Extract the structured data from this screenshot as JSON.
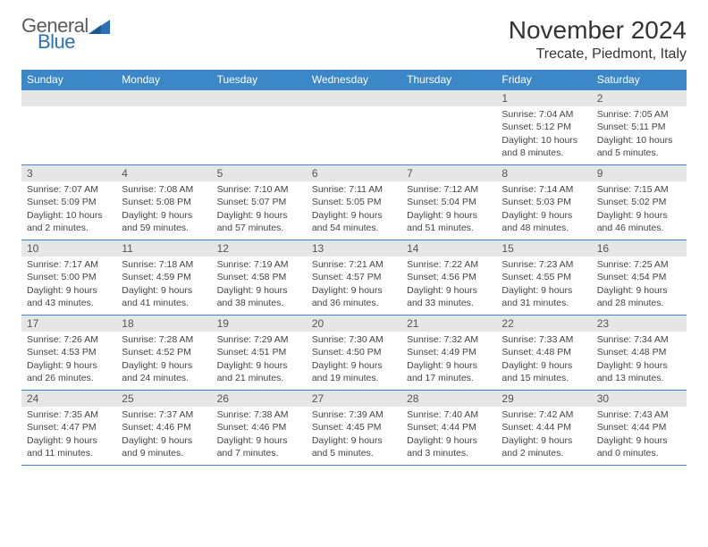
{
  "logo": {
    "top": "General",
    "bottom": "Blue"
  },
  "title": "November 2024",
  "location": "Trecate, Piedmont, Italy",
  "colors": {
    "header_bg": "#3b87c8",
    "header_text": "#ffffff",
    "daynum_bg": "#e6e6e6",
    "border": "#3b87c8",
    "logo_gray": "#5c5c5c",
    "logo_blue": "#2a72b5"
  },
  "weekdays": [
    "Sunday",
    "Monday",
    "Tuesday",
    "Wednesday",
    "Thursday",
    "Friday",
    "Saturday"
  ],
  "weeks": [
    [
      {
        "n": "",
        "sr": "",
        "ss": "",
        "dl": ""
      },
      {
        "n": "",
        "sr": "",
        "ss": "",
        "dl": ""
      },
      {
        "n": "",
        "sr": "",
        "ss": "",
        "dl": ""
      },
      {
        "n": "",
        "sr": "",
        "ss": "",
        "dl": ""
      },
      {
        "n": "",
        "sr": "",
        "ss": "",
        "dl": ""
      },
      {
        "n": "1",
        "sr": "Sunrise: 7:04 AM",
        "ss": "Sunset: 5:12 PM",
        "dl": "Daylight: 10 hours and 8 minutes."
      },
      {
        "n": "2",
        "sr": "Sunrise: 7:05 AM",
        "ss": "Sunset: 5:11 PM",
        "dl": "Daylight: 10 hours and 5 minutes."
      }
    ],
    [
      {
        "n": "3",
        "sr": "Sunrise: 7:07 AM",
        "ss": "Sunset: 5:09 PM",
        "dl": "Daylight: 10 hours and 2 minutes."
      },
      {
        "n": "4",
        "sr": "Sunrise: 7:08 AM",
        "ss": "Sunset: 5:08 PM",
        "dl": "Daylight: 9 hours and 59 minutes."
      },
      {
        "n": "5",
        "sr": "Sunrise: 7:10 AM",
        "ss": "Sunset: 5:07 PM",
        "dl": "Daylight: 9 hours and 57 minutes."
      },
      {
        "n": "6",
        "sr": "Sunrise: 7:11 AM",
        "ss": "Sunset: 5:05 PM",
        "dl": "Daylight: 9 hours and 54 minutes."
      },
      {
        "n": "7",
        "sr": "Sunrise: 7:12 AM",
        "ss": "Sunset: 5:04 PM",
        "dl": "Daylight: 9 hours and 51 minutes."
      },
      {
        "n": "8",
        "sr": "Sunrise: 7:14 AM",
        "ss": "Sunset: 5:03 PM",
        "dl": "Daylight: 9 hours and 48 minutes."
      },
      {
        "n": "9",
        "sr": "Sunrise: 7:15 AM",
        "ss": "Sunset: 5:02 PM",
        "dl": "Daylight: 9 hours and 46 minutes."
      }
    ],
    [
      {
        "n": "10",
        "sr": "Sunrise: 7:17 AM",
        "ss": "Sunset: 5:00 PM",
        "dl": "Daylight: 9 hours and 43 minutes."
      },
      {
        "n": "11",
        "sr": "Sunrise: 7:18 AM",
        "ss": "Sunset: 4:59 PM",
        "dl": "Daylight: 9 hours and 41 minutes."
      },
      {
        "n": "12",
        "sr": "Sunrise: 7:19 AM",
        "ss": "Sunset: 4:58 PM",
        "dl": "Daylight: 9 hours and 38 minutes."
      },
      {
        "n": "13",
        "sr": "Sunrise: 7:21 AM",
        "ss": "Sunset: 4:57 PM",
        "dl": "Daylight: 9 hours and 36 minutes."
      },
      {
        "n": "14",
        "sr": "Sunrise: 7:22 AM",
        "ss": "Sunset: 4:56 PM",
        "dl": "Daylight: 9 hours and 33 minutes."
      },
      {
        "n": "15",
        "sr": "Sunrise: 7:23 AM",
        "ss": "Sunset: 4:55 PM",
        "dl": "Daylight: 9 hours and 31 minutes."
      },
      {
        "n": "16",
        "sr": "Sunrise: 7:25 AM",
        "ss": "Sunset: 4:54 PM",
        "dl": "Daylight: 9 hours and 28 minutes."
      }
    ],
    [
      {
        "n": "17",
        "sr": "Sunrise: 7:26 AM",
        "ss": "Sunset: 4:53 PM",
        "dl": "Daylight: 9 hours and 26 minutes."
      },
      {
        "n": "18",
        "sr": "Sunrise: 7:28 AM",
        "ss": "Sunset: 4:52 PM",
        "dl": "Daylight: 9 hours and 24 minutes."
      },
      {
        "n": "19",
        "sr": "Sunrise: 7:29 AM",
        "ss": "Sunset: 4:51 PM",
        "dl": "Daylight: 9 hours and 21 minutes."
      },
      {
        "n": "20",
        "sr": "Sunrise: 7:30 AM",
        "ss": "Sunset: 4:50 PM",
        "dl": "Daylight: 9 hours and 19 minutes."
      },
      {
        "n": "21",
        "sr": "Sunrise: 7:32 AM",
        "ss": "Sunset: 4:49 PM",
        "dl": "Daylight: 9 hours and 17 minutes."
      },
      {
        "n": "22",
        "sr": "Sunrise: 7:33 AM",
        "ss": "Sunset: 4:48 PM",
        "dl": "Daylight: 9 hours and 15 minutes."
      },
      {
        "n": "23",
        "sr": "Sunrise: 7:34 AM",
        "ss": "Sunset: 4:48 PM",
        "dl": "Daylight: 9 hours and 13 minutes."
      }
    ],
    [
      {
        "n": "24",
        "sr": "Sunrise: 7:35 AM",
        "ss": "Sunset: 4:47 PM",
        "dl": "Daylight: 9 hours and 11 minutes."
      },
      {
        "n": "25",
        "sr": "Sunrise: 7:37 AM",
        "ss": "Sunset: 4:46 PM",
        "dl": "Daylight: 9 hours and 9 minutes."
      },
      {
        "n": "26",
        "sr": "Sunrise: 7:38 AM",
        "ss": "Sunset: 4:46 PM",
        "dl": "Daylight: 9 hours and 7 minutes."
      },
      {
        "n": "27",
        "sr": "Sunrise: 7:39 AM",
        "ss": "Sunset: 4:45 PM",
        "dl": "Daylight: 9 hours and 5 minutes."
      },
      {
        "n": "28",
        "sr": "Sunrise: 7:40 AM",
        "ss": "Sunset: 4:44 PM",
        "dl": "Daylight: 9 hours and 3 minutes."
      },
      {
        "n": "29",
        "sr": "Sunrise: 7:42 AM",
        "ss": "Sunset: 4:44 PM",
        "dl": "Daylight: 9 hours and 2 minutes."
      },
      {
        "n": "30",
        "sr": "Sunrise: 7:43 AM",
        "ss": "Sunset: 4:44 PM",
        "dl": "Daylight: 9 hours and 0 minutes."
      }
    ]
  ]
}
